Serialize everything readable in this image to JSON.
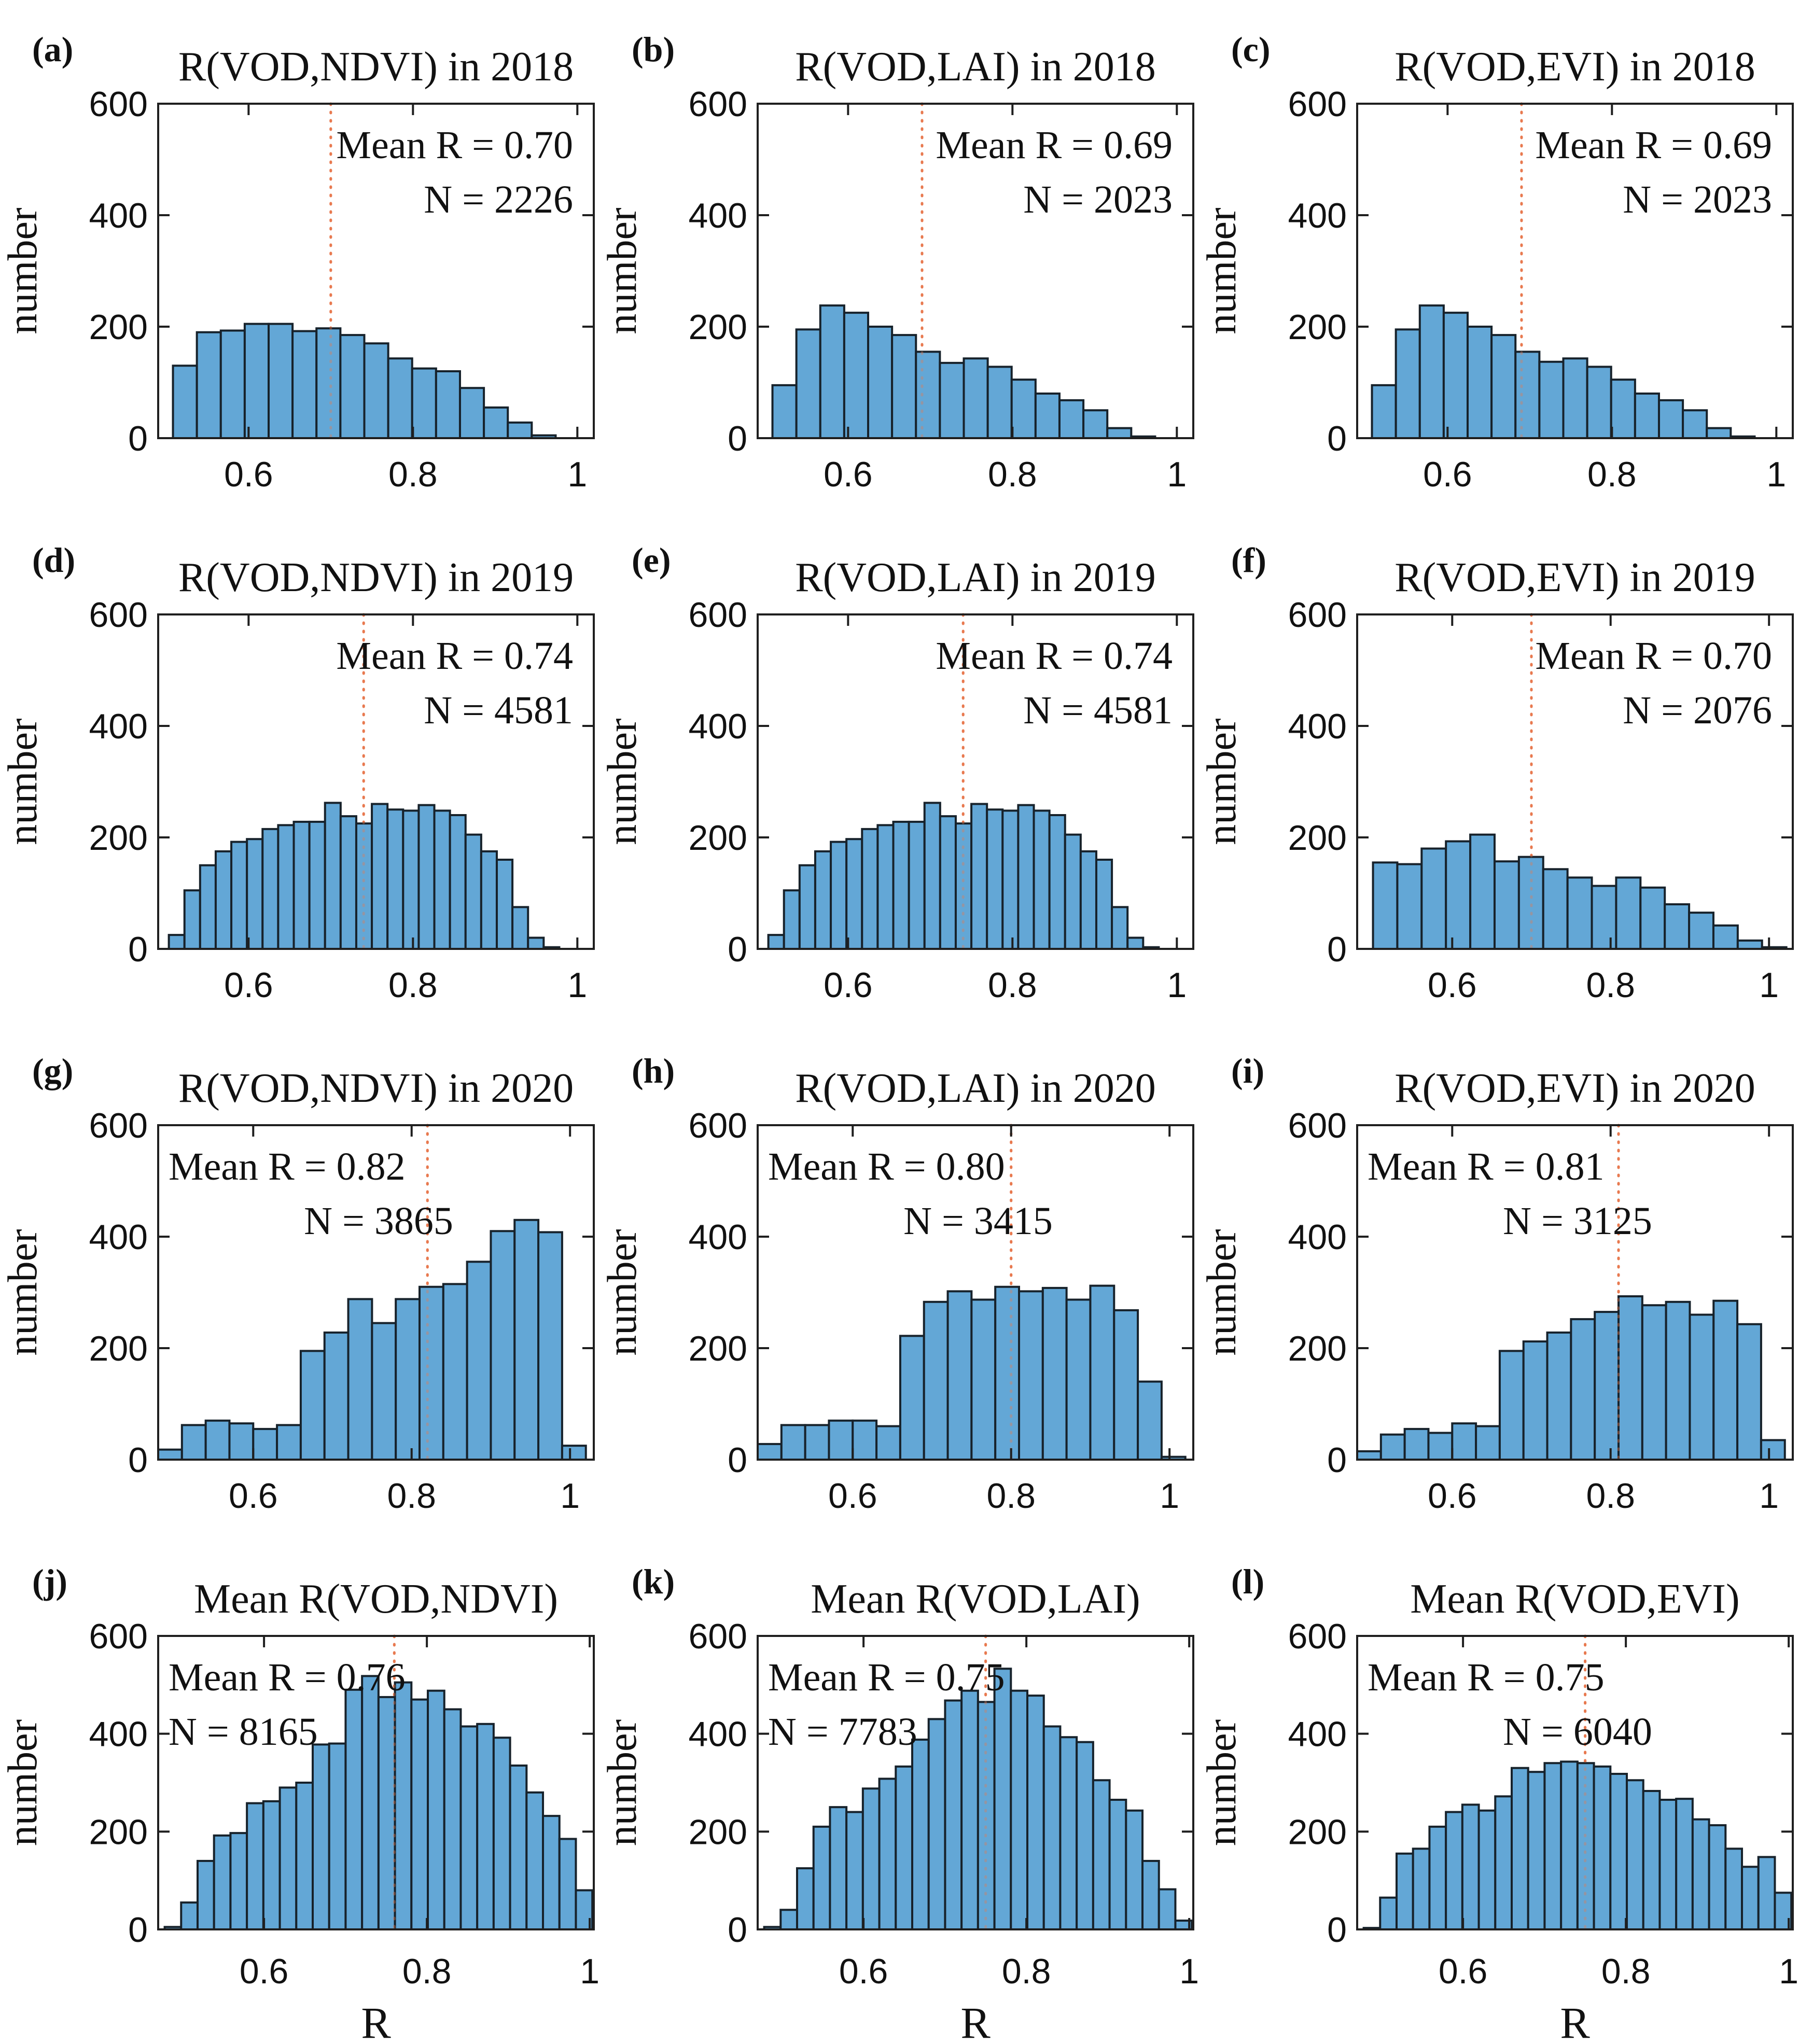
{
  "figure": {
    "ylabel": "number",
    "xlabel": "R",
    "yticks": [
      0,
      200,
      400,
      600
    ],
    "ytick_labels": [
      "0",
      "200",
      "400",
      "600"
    ],
    "xticks": [
      0.6,
      0.8,
      1
    ],
    "xtick_labels": [
      "0.6",
      "0.8",
      "1"
    ],
    "ylim": [
      0,
      600
    ],
    "colors": {
      "bar_fill": "#63a7d6",
      "bar_edge": "#17222b",
      "mean_line": "#e8794f",
      "axis": "#1f1f1f",
      "text": "#111111",
      "background": "#ffffff"
    }
  },
  "chart_data": [
    {
      "panel": "a",
      "label": "(a)",
      "type": "histogram",
      "title": "R(VOD,NDVI) in 2018",
      "mean_label": "Mean R = 0.70",
      "n_label": "N = 2226",
      "mean_r": 0.7,
      "n": 2226,
      "annotation_side": "right",
      "n_align": "right",
      "xlim": [
        0.49,
        1.02
      ],
      "bin_start": 0.508,
      "bin_width": 0.0291,
      "values": [
        130,
        190,
        193,
        205,
        205,
        192,
        197,
        185,
        170,
        143,
        125,
        120,
        90,
        55,
        28,
        5
      ],
      "show_xlabel": false
    },
    {
      "panel": "b",
      "label": "(b)",
      "type": "histogram",
      "title": "R(VOD,LAI) in 2018",
      "mean_label": "Mean R = 0.69",
      "n_label": "N = 2023",
      "mean_r": 0.69,
      "n": 2023,
      "annotation_side": "right",
      "n_align": "right",
      "xlim": [
        0.49,
        1.02
      ],
      "bin_start": 0.508,
      "bin_width": 0.0291,
      "values": [
        95,
        195,
        238,
        225,
        200,
        185,
        155,
        135,
        143,
        128,
        105,
        80,
        68,
        50,
        18,
        3
      ],
      "show_xlabel": false
    },
    {
      "panel": "c",
      "label": "(c)",
      "type": "histogram",
      "title": "R(VOD,EVI) in 2018",
      "mean_label": "Mean R = 0.69",
      "n_label": "N = 2023",
      "mean_r": 0.69,
      "n": 2023,
      "annotation_side": "right",
      "n_align": "right",
      "xlim": [
        0.49,
        1.02
      ],
      "bin_start": 0.508,
      "bin_width": 0.0291,
      "values": [
        95,
        195,
        238,
        225,
        200,
        185,
        155,
        137,
        143,
        128,
        105,
        80,
        68,
        50,
        18,
        3
      ],
      "show_xlabel": false
    },
    {
      "panel": "d",
      "label": "(d)",
      "type": "histogram",
      "title": "R(VOD,NDVI) in 2019",
      "mean_label": "Mean R = 0.74",
      "n_label": "N = 4581",
      "mean_r": 0.74,
      "n": 4581,
      "annotation_side": "right",
      "n_align": "right",
      "xlim": [
        0.49,
        1.02
      ],
      "bin_start": 0.503,
      "bin_width": 0.019,
      "values": [
        25,
        105,
        150,
        175,
        192,
        197,
        215,
        222,
        228,
        228,
        262,
        238,
        225,
        260,
        250,
        248,
        258,
        248,
        240,
        205,
        175,
        160,
        75,
        20,
        3
      ],
      "show_xlabel": false
    },
    {
      "panel": "e",
      "label": "(e)",
      "type": "histogram",
      "title": "R(VOD,LAI) in 2019",
      "mean_label": "Mean R = 0.74",
      "n_label": "N = 4581",
      "mean_r": 0.74,
      "n": 4581,
      "annotation_side": "right",
      "n_align": "right",
      "xlim": [
        0.49,
        1.02
      ],
      "bin_start": 0.503,
      "bin_width": 0.019,
      "values": [
        25,
        105,
        150,
        175,
        192,
        197,
        215,
        222,
        228,
        228,
        262,
        238,
        225,
        260,
        250,
        248,
        258,
        248,
        240,
        205,
        175,
        160,
        75,
        20,
        3
      ],
      "show_xlabel": false
    },
    {
      "panel": "f",
      "label": "(f)",
      "type": "histogram",
      "title": "R(VOD,EVI) in 2019",
      "mean_label": "Mean R = 0.70",
      "n_label": "N = 2076",
      "mean_r": 0.7,
      "n": 2076,
      "annotation_side": "right",
      "n_align": "right",
      "xlim": [
        0.48,
        1.03
      ],
      "bin_start": 0.5,
      "bin_width": 0.0307,
      "values": [
        155,
        152,
        180,
        193,
        205,
        157,
        165,
        143,
        128,
        113,
        128,
        110,
        80,
        65,
        42,
        15,
        3
      ],
      "show_xlabel": false
    },
    {
      "panel": "g",
      "label": "(g)",
      "type": "histogram",
      "title": "R(VOD,NDVI) in 2020",
      "mean_label": "Mean R = 0.82",
      "n_label": "N = 3865",
      "mean_r": 0.82,
      "n": 3865,
      "annotation_side": "left",
      "n_align": "center",
      "xlim": [
        0.48,
        1.03
      ],
      "bin_start": 0.48,
      "bin_width": 0.03,
      "values": [
        18,
        62,
        70,
        65,
        55,
        62,
        195,
        228,
        288,
        245,
        288,
        310,
        315,
        355,
        410,
        430,
        408,
        25
      ],
      "show_xlabel": false
    },
    {
      "panel": "h",
      "label": "(h)",
      "type": "histogram",
      "title": "R(VOD,LAI) in 2020",
      "mean_label": "Mean R = 0.80",
      "n_label": "N = 3415",
      "mean_r": 0.8,
      "n": 3415,
      "annotation_side": "left",
      "n_align": "center",
      "xlim": [
        0.48,
        1.03
      ],
      "bin_start": 0.48,
      "bin_width": 0.03,
      "values": [
        28,
        62,
        62,
        70,
        70,
        60,
        222,
        283,
        302,
        287,
        310,
        302,
        308,
        287,
        312,
        268,
        140,
        5
      ],
      "show_xlabel": false
    },
    {
      "panel": "i",
      "label": "(i)",
      "type": "histogram",
      "title": "R(VOD,EVI) in 2020",
      "mean_label": "Mean R = 0.81",
      "n_label": "N = 3125",
      "mean_r": 0.81,
      "n": 3125,
      "annotation_side": "left",
      "n_align": "center",
      "xlim": [
        0.48,
        1.03
      ],
      "bin_start": 0.48,
      "bin_width": 0.03,
      "values": [
        15,
        45,
        55,
        48,
        65,
        60,
        195,
        212,
        228,
        252,
        265,
        293,
        277,
        283,
        260,
        285,
        243,
        35
      ],
      "show_xlabel": false
    },
    {
      "panel": "j",
      "label": "(j)",
      "type": "histogram",
      "title": "Mean R(VOD,NDVI)",
      "mean_label": "Mean R = 0.76",
      "n_label": "N = 8165",
      "mean_r": 0.76,
      "n": 8165,
      "annotation_side": "left",
      "n_align": "left",
      "xlim": [
        0.47,
        1.005
      ],
      "bin_start": 0.478,
      "bin_width": 0.0202,
      "values": [
        5,
        55,
        140,
        192,
        197,
        258,
        262,
        290,
        300,
        378,
        380,
        490,
        518,
        475,
        505,
        470,
        488,
        450,
        415,
        420,
        392,
        335,
        280,
        232,
        185,
        80
      ],
      "show_xlabel": true
    },
    {
      "panel": "k",
      "label": "(k)",
      "type": "histogram",
      "title": "Mean R(VOD,LAI)",
      "mean_label": "Mean R = 0.75",
      "n_label": "N = 7783",
      "mean_r": 0.75,
      "n": 7783,
      "annotation_side": "left",
      "n_align": "left",
      "xlim": [
        0.47,
        1.005
      ],
      "bin_start": 0.478,
      "bin_width": 0.0202,
      "values": [
        5,
        40,
        125,
        210,
        250,
        240,
        288,
        308,
        333,
        388,
        430,
        468,
        488,
        465,
        533,
        488,
        478,
        415,
        393,
        383,
        305,
        265,
        243,
        140,
        82,
        18
      ],
      "show_xlabel": true
    },
    {
      "panel": "l",
      "label": "(l)",
      "type": "histogram",
      "title": "Mean R(VOD,EVI)",
      "mean_label": "Mean R = 0.75",
      "n_label": "N = 6040",
      "mean_r": 0.75,
      "n": 6040,
      "annotation_side": "left",
      "n_align": "center",
      "xlim": [
        0.47,
        1.005
      ],
      "bin_start": 0.478,
      "bin_width": 0.0202,
      "values": [
        3,
        65,
        155,
        165,
        210,
        240,
        255,
        243,
        272,
        330,
        322,
        340,
        343,
        340,
        333,
        318,
        305,
        283,
        265,
        267,
        225,
        213,
        165,
        128,
        148,
        75
      ],
      "show_xlabel": true
    }
  ]
}
